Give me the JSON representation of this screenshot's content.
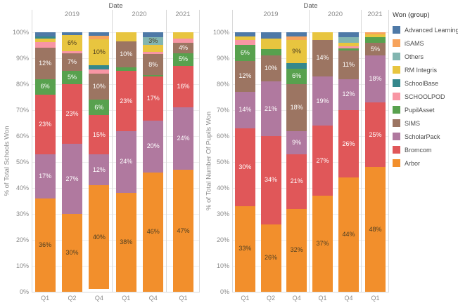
{
  "legend": {
    "title": "Won (group)",
    "items": [
      {
        "label": "Advanced Learning",
        "color": "#4e79a7"
      },
      {
        "label": "iSAMS",
        "color": "#f7a35c"
      },
      {
        "label": "Others",
        "color": "#82b5b0"
      },
      {
        "label": "RM Integris",
        "color": "#e8c53f"
      },
      {
        "label": "SchoolBase",
        "color": "#35888c"
      },
      {
        "label": "SCHOOLPOD",
        "color": "#f896a4"
      },
      {
        "label": "PupilAsset",
        "color": "#58a14e"
      },
      {
        "label": "SIMS",
        "color": "#9c7562"
      },
      {
        "label": "ScholarPack",
        "color": "#b0799f"
      },
      {
        "label": "Bromcom",
        "color": "#e05759"
      },
      {
        "label": "Arbor",
        "color": "#f28f2c"
      }
    ]
  },
  "chart_data": [
    {
      "type": "bar",
      "subtype": "stacked-percent",
      "title": "Date",
      "ylabel": "% of Total Schools Won",
      "ylim": [
        0,
        100
      ],
      "ytick_labels": [
        "0%",
        "10%",
        "20%",
        "30%",
        "40%",
        "50%",
        "60%",
        "70%",
        "80%",
        "90%",
        "100%"
      ],
      "groups": [
        {
          "label": "2019",
          "bars": [
            {
              "label": "Q1",
              "segments": [
                {
                  "name": "Advanced Learning",
                  "value": 1.6,
                  "label": ""
                },
                {
                  "name": "SchoolBase",
                  "value": 0.8,
                  "label": ""
                },
                {
                  "name": "RM Integris",
                  "value": 1.5,
                  "label": ""
                },
                {
                  "name": "SCHOOLPOD",
                  "value": 2.1,
                  "label": ""
                },
                {
                  "name": "SIMS",
                  "value": 12,
                  "label": "12%"
                },
                {
                  "name": "PupilAsset",
                  "value": 6,
                  "label": "6%"
                },
                {
                  "name": "Bromcom",
                  "value": 23,
                  "label": "23%"
                },
                {
                  "name": "ScholarPack",
                  "value": 17,
                  "label": "17%"
                },
                {
                  "name": "Arbor",
                  "value": 36,
                  "label": "36%"
                }
              ]
            },
            {
              "label": "Q2",
              "segments": [
                {
                  "name": "Advanced Learning",
                  "value": 1.2,
                  "label": ""
                },
                {
                  "name": "RM Integris",
                  "value": 6,
                  "label": "6%"
                },
                {
                  "name": "SCHOOLPOD",
                  "value": 0.8,
                  "label": ""
                },
                {
                  "name": "SIMS",
                  "value": 7,
                  "label": "7%"
                },
                {
                  "name": "PupilAsset",
                  "value": 5,
                  "label": "5%"
                },
                {
                  "name": "Bromcom",
                  "value": 23,
                  "label": "23%"
                },
                {
                  "name": "ScholarPack",
                  "value": 27,
                  "label": "27%"
                },
                {
                  "name": "Arbor",
                  "value": 30,
                  "label": "30%"
                }
              ]
            },
            {
              "label": "Q4",
              "segments": [
                {
                  "name": "Advanced Learning",
                  "value": 1.4,
                  "label": ""
                },
                {
                  "name": "iSAMS",
                  "value": 1.4,
                  "label": ""
                },
                {
                  "name": "RM Integris",
                  "value": 10,
                  "label": "10%"
                },
                {
                  "name": "SchoolBase",
                  "value": 1.6,
                  "label": ""
                },
                {
                  "name": "SCHOOLPOD",
                  "value": 1.6,
                  "label": ""
                },
                {
                  "name": "SIMS",
                  "value": 10,
                  "label": "10%"
                },
                {
                  "name": "PupilAsset",
                  "value": 6,
                  "label": "6%"
                },
                {
                  "name": "Bromcom",
                  "value": 15,
                  "label": "15%"
                },
                {
                  "name": "ScholarPack",
                  "value": 12,
                  "label": "12%"
                },
                {
                  "name": "Arbor",
                  "value": 40,
                  "label": "40%"
                }
              ]
            }
          ]
        },
        {
          "label": "2020",
          "bars": [
            {
              "label": "Q1",
              "segments": [
                {
                  "name": "RM Integris",
                  "value": 3.5,
                  "label": ""
                },
                {
                  "name": "SIMS",
                  "value": 10,
                  "label": "10%"
                },
                {
                  "name": "PupilAsset",
                  "value": 1.5,
                  "label": ""
                },
                {
                  "name": "Bromcom",
                  "value": 23,
                  "label": "23%"
                },
                {
                  "name": "ScholarPack",
                  "value": 24,
                  "label": "24%"
                },
                {
                  "name": "Arbor",
                  "value": 38,
                  "label": "38%"
                }
              ]
            },
            {
              "label": "Q4",
              "segments": [
                {
                  "name": "Advanced Learning",
                  "value": 2,
                  "label": ""
                },
                {
                  "name": "Others",
                  "value": 3,
                  "label": "3%"
                },
                {
                  "name": "RM Integris",
                  "value": 2.5,
                  "label": ""
                },
                {
                  "name": "SCHOOLPOD",
                  "value": 1,
                  "label": ""
                },
                {
                  "name": "SIMS",
                  "value": 8,
                  "label": "8%"
                },
                {
                  "name": "PupilAsset",
                  "value": 0.5,
                  "label": ""
                },
                {
                  "name": "Bromcom",
                  "value": 17,
                  "label": "17%"
                },
                {
                  "name": "ScholarPack",
                  "value": 20,
                  "label": "20%"
                },
                {
                  "name": "Arbor",
                  "value": 46,
                  "label": "46%"
                }
              ]
            }
          ]
        },
        {
          "label": "2021",
          "bars": [
            {
              "label": "Q1",
              "segments": [
                {
                  "name": "RM Integris",
                  "value": 2.5,
                  "label": ""
                },
                {
                  "name": "SCHOOLPOD",
                  "value": 1.5,
                  "label": ""
                },
                {
                  "name": "SIMS",
                  "value": 4,
                  "label": "4%"
                },
                {
                  "name": "PupilAsset",
                  "value": 5,
                  "label": "5%"
                },
                {
                  "name": "Bromcom",
                  "value": 16,
                  "label": "16%"
                },
                {
                  "name": "ScholarPack",
                  "value": 24,
                  "label": "24%"
                },
                {
                  "name": "Arbor",
                  "value": 47,
                  "label": "47%"
                }
              ]
            }
          ]
        }
      ]
    },
    {
      "type": "bar",
      "subtype": "stacked-percent",
      "title": "Date",
      "ylabel": "% of Total Number Of Pupils Won",
      "ylim": [
        0,
        100
      ],
      "ytick_labels": [
        "0%",
        "10%",
        "20%",
        "30%",
        "40%",
        "50%",
        "60%",
        "70%",
        "80%",
        "90%",
        "100%"
      ],
      "groups": [
        {
          "label": "2019",
          "bars": [
            {
              "label": "Q1",
              "segments": [
                {
                  "name": "Advanced Learning",
                  "value": 1.5,
                  "label": ""
                },
                {
                  "name": "RM Integris",
                  "value": 1.5,
                  "label": ""
                },
                {
                  "name": "SCHOOLPOD",
                  "value": 2,
                  "label": ""
                },
                {
                  "name": "PupilAsset",
                  "value": 6,
                  "label": "6%"
                },
                {
                  "name": "SIMS",
                  "value": 12,
                  "label": "12%"
                },
                {
                  "name": "ScholarPack",
                  "value": 14,
                  "label": "14%"
                },
                {
                  "name": "Bromcom",
                  "value": 30,
                  "label": "30%"
                },
                {
                  "name": "Arbor",
                  "value": 33,
                  "label": "33%"
                }
              ]
            },
            {
              "label": "Q2",
              "segments": [
                {
                  "name": "Advanced Learning",
                  "value": 2.5,
                  "label": ""
                },
                {
                  "name": "RM Integris",
                  "value": 4,
                  "label": ""
                },
                {
                  "name": "PupilAsset",
                  "value": 2.5,
                  "label": ""
                },
                {
                  "name": "SIMS",
                  "value": 10,
                  "label": "10%"
                },
                {
                  "name": "ScholarPack",
                  "value": 21,
                  "label": "21%"
                },
                {
                  "name": "Bromcom",
                  "value": 34,
                  "label": "34%"
                },
                {
                  "name": "Arbor",
                  "value": 26,
                  "label": "26%"
                }
              ]
            },
            {
              "label": "Q4",
              "segments": [
                {
                  "name": "Advanced Learning",
                  "value": 1.5,
                  "label": ""
                },
                {
                  "name": "iSAMS",
                  "value": 1.5,
                  "label": ""
                },
                {
                  "name": "RM Integris",
                  "value": 9,
                  "label": "9%"
                },
                {
                  "name": "SchoolBase",
                  "value": 2,
                  "label": ""
                },
                {
                  "name": "PupilAsset",
                  "value": 6,
                  "label": "6%"
                },
                {
                  "name": "SIMS",
                  "value": 18,
                  "label": "18%"
                },
                {
                  "name": "ScholarPack",
                  "value": 9,
                  "label": "9%"
                },
                {
                  "name": "Bromcom",
                  "value": 21,
                  "label": "21%"
                },
                {
                  "name": "Arbor",
                  "value": 32,
                  "label": "32%"
                }
              ]
            }
          ]
        },
        {
          "label": "2020",
          "bars": [
            {
              "label": "Q1",
              "segments": [
                {
                  "name": "RM Integris",
                  "value": 3,
                  "label": ""
                },
                {
                  "name": "SIMS",
                  "value": 14,
                  "label": "14%"
                },
                {
                  "name": "ScholarPack",
                  "value": 19,
                  "label": "19%"
                },
                {
                  "name": "Bromcom",
                  "value": 27,
                  "label": "27%"
                },
                {
                  "name": "Arbor",
                  "value": 37,
                  "label": "37%"
                }
              ]
            },
            {
              "label": "Q4",
              "segments": [
                {
                  "name": "Advanced Learning",
                  "value": 2,
                  "label": ""
                },
                {
                  "name": "Others",
                  "value": 2,
                  "label": ""
                },
                {
                  "name": "RM Integris",
                  "value": 1.5,
                  "label": ""
                },
                {
                  "name": "SCHOOLPOD",
                  "value": 0.75,
                  "label": ""
                },
                {
                  "name": "PupilAsset",
                  "value": 0.75,
                  "label": ""
                },
                {
                  "name": "SIMS",
                  "value": 11,
                  "label": "11%"
                },
                {
                  "name": "ScholarPack",
                  "value": 12,
                  "label": "12%"
                },
                {
                  "name": "Bromcom",
                  "value": 26,
                  "label": "26%"
                },
                {
                  "name": "Arbor",
                  "value": 44,
                  "label": "44%"
                }
              ]
            }
          ]
        },
        {
          "label": "2021",
          "bars": [
            {
              "label": "Q1",
              "segments": [
                {
                  "name": "iSAMS",
                  "value": 0.8,
                  "label": ""
                },
                {
                  "name": "RM Integris",
                  "value": 1.0,
                  "label": ""
                },
                {
                  "name": "PupilAsset",
                  "value": 2.2,
                  "label": ""
                },
                {
                  "name": "SIMS",
                  "value": 5,
                  "label": "5%"
                },
                {
                  "name": "ScholarPack",
                  "value": 18,
                  "label": "18%"
                },
                {
                  "name": "Bromcom",
                  "value": 25,
                  "label": "25%"
                },
                {
                  "name": "Arbor",
                  "value": 48,
                  "label": "48%"
                }
              ]
            }
          ]
        }
      ]
    }
  ]
}
